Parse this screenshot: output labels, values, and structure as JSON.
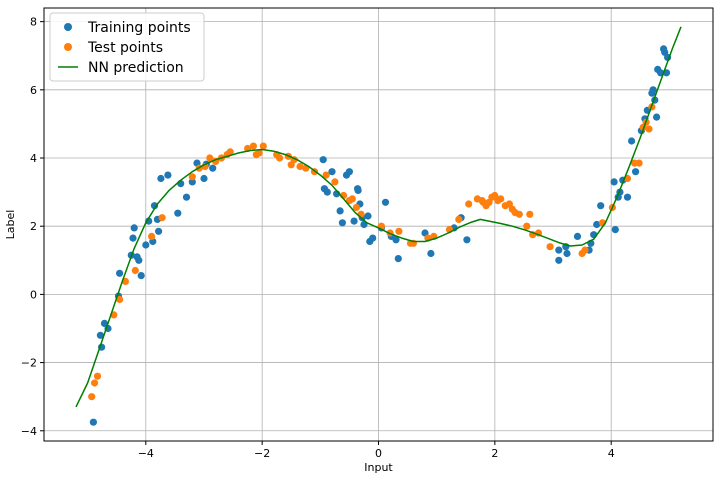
{
  "chart_data": {
    "type": "scatter",
    "xlabel": "Input",
    "ylabel": "Label",
    "xlim": [
      -5.75,
      5.75
    ],
    "ylim": [
      -4.3,
      8.4
    ],
    "xticks": [
      -4,
      -2,
      0,
      2,
      4
    ],
    "yticks": [
      -4,
      -2,
      0,
      2,
      4,
      6,
      8
    ],
    "xtick_labels": [
      "−4",
      "−2",
      "0",
      "2",
      "4"
    ],
    "ytick_labels": [
      "−4",
      "−2",
      "0",
      "2",
      "4",
      "6",
      "8"
    ],
    "grid": true,
    "legend_position": "top-left",
    "series": [
      {
        "name": "Training points",
        "kind": "scatter",
        "color": "#1f77b4",
        "points": [
          [
            -4.9,
            -3.75
          ],
          [
            -4.76,
            -1.55
          ],
          [
            -4.78,
            -1.2
          ],
          [
            -4.71,
            -0.85
          ],
          [
            -4.65,
            -1.0
          ],
          [
            -4.47,
            -0.05
          ],
          [
            -4.45,
            0.62
          ],
          [
            -4.25,
            1.15
          ],
          [
            -4.22,
            1.65
          ],
          [
            -4.2,
            1.95
          ],
          [
            -4.15,
            1.1
          ],
          [
            -4.12,
            1.0
          ],
          [
            -4.08,
            0.55
          ],
          [
            -4.0,
            1.45
          ],
          [
            -3.95,
            2.15
          ],
          [
            -3.88,
            1.55
          ],
          [
            -3.85,
            2.6
          ],
          [
            -3.8,
            2.2
          ],
          [
            -3.78,
            1.85
          ],
          [
            -3.74,
            3.4
          ],
          [
            -3.62,
            3.5
          ],
          [
            -3.45,
            2.38
          ],
          [
            -3.4,
            3.25
          ],
          [
            -3.3,
            2.85
          ],
          [
            -3.2,
            3.3
          ],
          [
            -3.12,
            3.85
          ],
          [
            -3.0,
            3.4
          ],
          [
            -2.96,
            3.82
          ],
          [
            -2.85,
            3.7
          ],
          [
            -0.95,
            3.95
          ],
          [
            -0.93,
            3.1
          ],
          [
            -0.88,
            3.0
          ],
          [
            -0.8,
            3.6
          ],
          [
            -0.72,
            2.95
          ],
          [
            -0.66,
            2.45
          ],
          [
            -0.62,
            2.1
          ],
          [
            -0.55,
            3.5
          ],
          [
            -0.5,
            3.6
          ],
          [
            -0.42,
            2.15
          ],
          [
            -0.36,
            3.1
          ],
          [
            -0.35,
            3.05
          ],
          [
            -0.32,
            2.65
          ],
          [
            -0.28,
            2.25
          ],
          [
            -0.25,
            2.05
          ],
          [
            -0.18,
            2.3
          ],
          [
            -0.15,
            1.55
          ],
          [
            -0.1,
            1.65
          ],
          [
            0.05,
            1.95
          ],
          [
            0.12,
            2.7
          ],
          [
            0.22,
            1.7
          ],
          [
            0.3,
            1.6
          ],
          [
            0.34,
            1.05
          ],
          [
            0.8,
            1.8
          ],
          [
            0.9,
            1.2
          ],
          [
            1.3,
            1.95
          ],
          [
            1.42,
            2.25
          ],
          [
            1.52,
            1.6
          ],
          [
            3.1,
            1.0
          ],
          [
            3.1,
            1.3
          ],
          [
            3.22,
            1.4
          ],
          [
            3.24,
            1.2
          ],
          [
            3.42,
            1.7
          ],
          [
            3.62,
            1.3
          ],
          [
            3.65,
            1.5
          ],
          [
            3.7,
            1.75
          ],
          [
            3.75,
            2.05
          ],
          [
            3.82,
            2.6
          ],
          [
            4.05,
            3.3
          ],
          [
            4.07,
            1.9
          ],
          [
            4.12,
            2.85
          ],
          [
            4.15,
            3.0
          ],
          [
            4.2,
            3.35
          ],
          [
            4.28,
            2.85
          ],
          [
            4.35,
            4.5
          ],
          [
            4.42,
            3.6
          ],
          [
            4.52,
            4.8
          ],
          [
            4.58,
            5.15
          ],
          [
            4.62,
            5.4
          ],
          [
            4.7,
            5.9
          ],
          [
            4.72,
            6.0
          ],
          [
            4.75,
            5.7
          ],
          [
            4.78,
            5.2
          ],
          [
            4.8,
            6.6
          ],
          [
            4.85,
            6.5
          ],
          [
            4.9,
            7.2
          ],
          [
            4.92,
            7.1
          ],
          [
            4.95,
            6.5
          ],
          [
            4.97,
            6.95
          ]
        ]
      },
      {
        "name": "Test points",
        "kind": "scatter",
        "color": "#ff7f0e",
        "points": [
          [
            -4.93,
            -3.0
          ],
          [
            -4.88,
            -2.6
          ],
          [
            -4.83,
            -2.4
          ],
          [
            -4.55,
            -0.6
          ],
          [
            -4.45,
            -0.15
          ],
          [
            -4.35,
            0.38
          ],
          [
            -4.18,
            0.7
          ],
          [
            -3.9,
            1.7
          ],
          [
            -3.72,
            2.25
          ],
          [
            -3.2,
            3.45
          ],
          [
            -3.08,
            3.7
          ],
          [
            -2.98,
            3.75
          ],
          [
            -2.9,
            4.0
          ],
          [
            -2.8,
            3.9
          ],
          [
            -2.7,
            4.0
          ],
          [
            -2.6,
            4.1
          ],
          [
            -2.55,
            4.18
          ],
          [
            -2.25,
            4.28
          ],
          [
            -2.15,
            4.35
          ],
          [
            -2.1,
            4.1
          ],
          [
            -2.05,
            4.15
          ],
          [
            -1.98,
            4.35
          ],
          [
            -1.75,
            4.1
          ],
          [
            -1.7,
            4.0
          ],
          [
            -1.55,
            4.05
          ],
          [
            -1.5,
            3.8
          ],
          [
            -1.45,
            3.95
          ],
          [
            -1.35,
            3.75
          ],
          [
            -1.25,
            3.7
          ],
          [
            -1.1,
            3.6
          ],
          [
            -0.9,
            3.5
          ],
          [
            -0.75,
            3.3
          ],
          [
            -0.6,
            2.9
          ],
          [
            -0.5,
            2.75
          ],
          [
            -0.45,
            2.8
          ],
          [
            -0.38,
            2.55
          ],
          [
            -0.3,
            2.35
          ],
          [
            0.05,
            2.0
          ],
          [
            0.2,
            1.8
          ],
          [
            0.35,
            1.85
          ],
          [
            0.55,
            1.5
          ],
          [
            0.6,
            1.5
          ],
          [
            0.85,
            1.65
          ],
          [
            0.95,
            1.7
          ],
          [
            1.22,
            1.9
          ],
          [
            1.38,
            2.2
          ],
          [
            1.55,
            2.65
          ],
          [
            1.7,
            2.8
          ],
          [
            1.78,
            2.75
          ],
          [
            1.8,
            2.7
          ],
          [
            1.85,
            2.6
          ],
          [
            1.9,
            2.7
          ],
          [
            1.95,
            2.85
          ],
          [
            2.0,
            2.9
          ],
          [
            2.05,
            2.75
          ],
          [
            2.1,
            2.8
          ],
          [
            2.18,
            2.6
          ],
          [
            2.25,
            2.65
          ],
          [
            2.3,
            2.5
          ],
          [
            2.35,
            2.4
          ],
          [
            2.42,
            2.35
          ],
          [
            2.55,
            2.0
          ],
          [
            2.6,
            2.35
          ],
          [
            2.65,
            1.75
          ],
          [
            2.75,
            1.8
          ],
          [
            2.95,
            1.4
          ],
          [
            3.5,
            1.2
          ],
          [
            3.55,
            1.3
          ],
          [
            3.85,
            2.1
          ],
          [
            4.02,
            2.55
          ],
          [
            4.28,
            3.4
          ],
          [
            4.4,
            3.85
          ],
          [
            4.48,
            3.85
          ],
          [
            4.55,
            4.9
          ],
          [
            4.6,
            5.05
          ],
          [
            4.65,
            4.85
          ],
          [
            4.7,
            5.5
          ]
        ]
      },
      {
        "name": "NN prediction",
        "kind": "line",
        "color": "#008000",
        "points": [
          [
            -5.2,
            -3.3
          ],
          [
            -5.0,
            -2.6
          ],
          [
            -4.8,
            -1.6
          ],
          [
            -4.6,
            -0.6
          ],
          [
            -4.4,
            0.4
          ],
          [
            -4.2,
            1.35
          ],
          [
            -4.0,
            2.1
          ],
          [
            -3.8,
            2.65
          ],
          [
            -3.6,
            3.05
          ],
          [
            -3.4,
            3.35
          ],
          [
            -3.2,
            3.6
          ],
          [
            -3.0,
            3.8
          ],
          [
            -2.8,
            3.95
          ],
          [
            -2.6,
            4.05
          ],
          [
            -2.4,
            4.15
          ],
          [
            -2.2,
            4.22
          ],
          [
            -2.0,
            4.25
          ],
          [
            -1.8,
            4.2
          ],
          [
            -1.6,
            4.1
          ],
          [
            -1.4,
            3.95
          ],
          [
            -1.2,
            3.75
          ],
          [
            -1.0,
            3.5
          ],
          [
            -0.8,
            3.2
          ],
          [
            -0.6,
            2.8
          ],
          [
            -0.4,
            2.4
          ],
          [
            -0.2,
            2.1
          ],
          [
            0.0,
            1.95
          ],
          [
            0.2,
            1.78
          ],
          [
            0.4,
            1.65
          ],
          [
            0.6,
            1.55
          ],
          [
            0.8,
            1.55
          ],
          [
            1.0,
            1.65
          ],
          [
            1.2,
            1.8
          ],
          [
            1.4,
            1.98
          ],
          [
            1.6,
            2.12
          ],
          [
            1.75,
            2.2
          ],
          [
            1.9,
            2.15
          ],
          [
            2.1,
            2.08
          ],
          [
            2.3,
            2.0
          ],
          [
            2.5,
            1.9
          ],
          [
            2.7,
            1.78
          ],
          [
            2.9,
            1.65
          ],
          [
            3.1,
            1.52
          ],
          [
            3.3,
            1.42
          ],
          [
            3.5,
            1.45
          ],
          [
            3.7,
            1.62
          ],
          [
            3.9,
            2.1
          ],
          [
            4.1,
            2.85
          ],
          [
            4.3,
            3.7
          ],
          [
            4.5,
            4.6
          ],
          [
            4.7,
            5.55
          ],
          [
            4.9,
            6.5
          ],
          [
            5.05,
            7.2
          ],
          [
            5.2,
            7.85
          ]
        ]
      }
    ]
  }
}
